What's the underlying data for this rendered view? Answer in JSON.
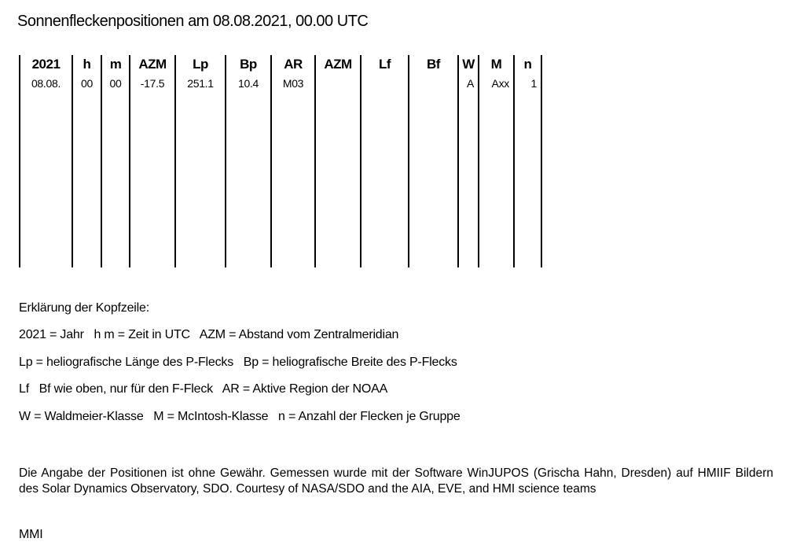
{
  "title": "Sonnenfleckenpositionen am 08.08.2021, 00.00 UTC",
  "table": {
    "headers": [
      "2021",
      "h",
      "m",
      "AZM",
      "Lp",
      "Bp",
      "AR",
      "AZM",
      "Lf",
      "Bf",
      "W",
      "M",
      "n"
    ],
    "row": [
      "08.08.",
      "00",
      "00",
      "-17.5",
      "251.1",
      "10.4",
      "M03",
      "",
      "",
      "",
      "A",
      "Axx",
      "1"
    ]
  },
  "legend": {
    "heading": "Erklärung der Kopfzeile:",
    "lines": [
      "2021 = Jahr   h m = Zeit in UTC   AZM = Abstand vom Zentralmeridian",
      "Lp = heliografische Länge des P-Flecks   Bp = heliografische Breite des P-Flecks",
      "Lf   Bf wie oben, nur für den F-Fleck   AR = Aktive Region der NOAA",
      "W = Waldmeier-Klasse   M = McIntosh-Klasse   n = Anzahl der Flecken je Gruppe"
    ]
  },
  "disclaimer": "Die Angabe der Positionen ist ohne Gewähr. Gemessen wurde mit der Software WinJUPOS (Grischa Hahn, Dresden) auf HMIIF Bildern des Solar Dynamics Observatory, SDO. Courtesy of NASA/SDO and the AIA, EVE, and HMI science teams",
  "signature": "MMI"
}
